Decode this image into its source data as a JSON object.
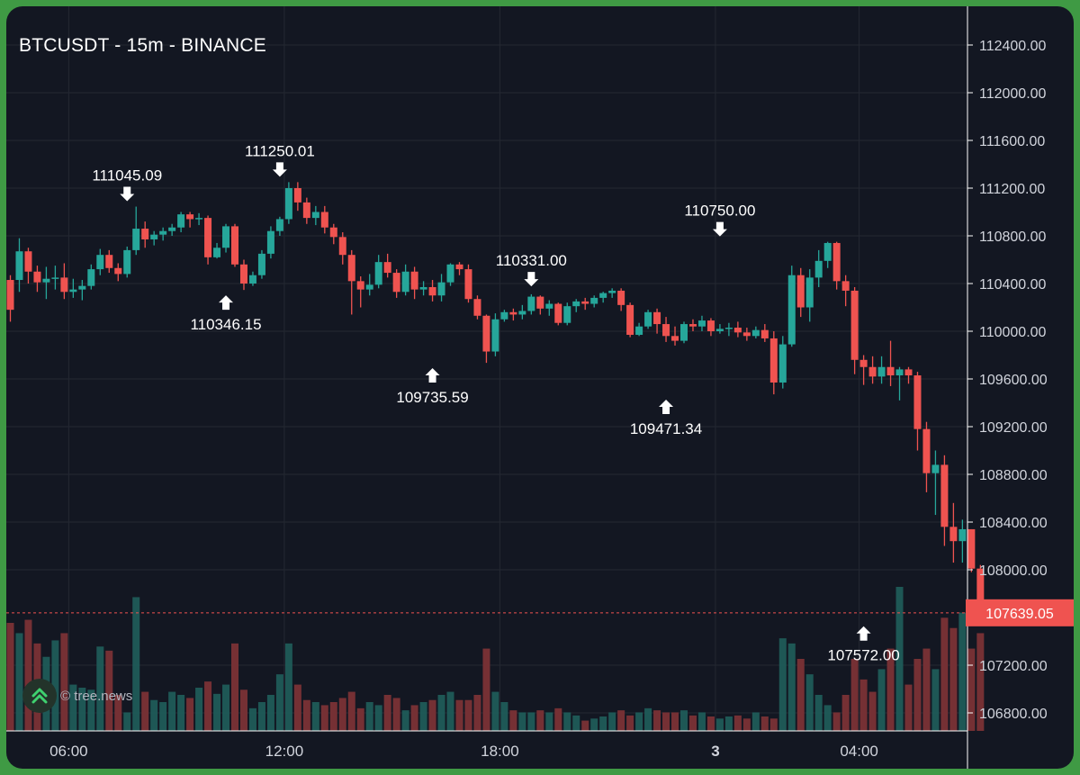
{
  "title": "BTCUSDT - 15m - BINANCE",
  "watermark": {
    "text": "© tree.news",
    "icon": "double-chevron-up-icon"
  },
  "colors": {
    "up": "#26a69a",
    "down": "#ef5350",
    "background": "#131722",
    "frame": "#3f9a44",
    "grid": "#242832",
    "text": "#d1d4dc"
  },
  "chart_data": {
    "type": "candlestick",
    "title": "BTCUSDT - 15m - BINANCE",
    "interval": "15m",
    "y_axis_side": "right",
    "ylim": [
      106640,
      112560
    ],
    "y_ticks": [
      "112400.00",
      "112000.00",
      "111600.00",
      "111200.00",
      "110800.00",
      "110400.00",
      "110000.00",
      "109600.00",
      "109200.00",
      "108800.00",
      "108400.00",
      "108000.00",
      "107200.00",
      "106800.00"
    ],
    "x_ticks": [
      {
        "label": "06:00",
        "index": 6.5
      },
      {
        "label": "12:00",
        "index": 30.5
      },
      {
        "label": "18:00",
        "index": 54.5
      },
      {
        "label": "3",
        "index": 78.5,
        "bold": true
      },
      {
        "label": "04:00",
        "index": 94.5
      }
    ],
    "current_price": "107639.05",
    "current_price_value": 107639.05,
    "annotations": [
      {
        "label": "111045.09",
        "index": 13,
        "value": 111045.09,
        "type": "high"
      },
      {
        "label": "111250.01",
        "index": 30,
        "value": 111250.01,
        "type": "high"
      },
      {
        "label": "110346.15",
        "index": 24,
        "value": 110346.15,
        "type": "low"
      },
      {
        "label": "110331.00",
        "index": 58,
        "value": 110331.0,
        "type": "high"
      },
      {
        "label": "109735.59",
        "index": 47,
        "value": 109735.59,
        "type": "low"
      },
      {
        "label": "110750.00",
        "index": 79,
        "value": 110750.0,
        "type": "high"
      },
      {
        "label": "109471.34",
        "index": 73,
        "value": 109471.34,
        "type": "low"
      },
      {
        "label": "107572.00",
        "index": 95,
        "value": 107572.0,
        "type": "low"
      }
    ],
    "candles": [
      [
        110430,
        110180,
        110080,
        110470
      ],
      [
        110430,
        110670,
        110330,
        110780
      ],
      [
        110670,
        110500,
        110400,
        110700
      ],
      [
        110500,
        110410,
        110330,
        110550
      ],
      [
        110410,
        110440,
        110270,
        110540
      ],
      [
        110440,
        110450,
        110350,
        110550
      ],
      [
        110450,
        110330,
        110270,
        110570
      ],
      [
        110330,
        110350,
        110280,
        110440
      ],
      [
        110350,
        110380,
        110260,
        110430
      ],
      [
        110380,
        110520,
        110350,
        110560
      ],
      [
        110520,
        110640,
        110470,
        110690
      ],
      [
        110640,
        110530,
        110490,
        110680
      ],
      [
        110530,
        110480,
        110420,
        110570
      ],
      [
        110480,
        110680,
        110450,
        110710
      ],
      [
        110680,
        110860,
        110640,
        111045
      ],
      [
        110860,
        110770,
        110700,
        110920
      ],
      [
        110770,
        110810,
        110720,
        110840
      ],
      [
        110810,
        110840,
        110760,
        110870
      ],
      [
        110840,
        110870,
        110800,
        110900
      ],
      [
        110870,
        110980,
        110830,
        111000
      ],
      [
        110980,
        110940,
        110870,
        111000
      ],
      [
        110940,
        110950,
        110890,
        110990
      ],
      [
        110950,
        110620,
        110560,
        110970
      ],
      [
        110620,
        110700,
        110610,
        110740
      ],
      [
        110700,
        110880,
        110660,
        110900
      ],
      [
        110880,
        110560,
        110540,
        110900
      ],
      [
        110560,
        110400,
        110346,
        110600
      ],
      [
        110400,
        110470,
        110380,
        110500
      ],
      [
        110470,
        110650,
        110440,
        110680
      ],
      [
        110650,
        110840,
        110610,
        110880
      ],
      [
        110840,
        110940,
        110800,
        110960
      ],
      [
        110940,
        111200,
        110900,
        111250
      ],
      [
        111200,
        111080,
        111010,
        111250
      ],
      [
        111080,
        110950,
        110900,
        111120
      ],
      [
        110950,
        111000,
        110890,
        111050
      ],
      [
        111000,
        110870,
        110820,
        111050
      ],
      [
        110870,
        110790,
        110730,
        110900
      ],
      [
        110790,
        110640,
        110560,
        110830
      ],
      [
        110640,
        110420,
        110140,
        110680
      ],
      [
        110420,
        110350,
        110200,
        110460
      ],
      [
        110350,
        110390,
        110300,
        110480
      ],
      [
        110390,
        110580,
        110360,
        110640
      ],
      [
        110580,
        110490,
        110450,
        110650
      ],
      [
        110490,
        110330,
        110280,
        110520
      ],
      [
        110330,
        110500,
        110300,
        110560
      ],
      [
        110500,
        110350,
        110270,
        110540
      ],
      [
        110350,
        110370,
        110300,
        110420
      ],
      [
        110370,
        110300,
        110250,
        110430
      ],
      [
        110300,
        110410,
        110250,
        110480
      ],
      [
        110410,
        110560,
        110380,
        110570
      ],
      [
        110560,
        110520,
        110470,
        110580
      ],
      [
        110520,
        110270,
        110240,
        110560
      ],
      [
        110270,
        110130,
        110100,
        110300
      ],
      [
        110130,
        109830,
        109735,
        110140
      ],
      [
        109830,
        110100,
        109790,
        110150
      ],
      [
        110100,
        110160,
        110080,
        110180
      ],
      [
        110160,
        110140,
        110090,
        110190
      ],
      [
        110140,
        110170,
        110100,
        110220
      ],
      [
        110170,
        110290,
        110140,
        110310
      ],
      [
        110290,
        110190,
        110140,
        110300
      ],
      [
        110190,
        110230,
        110130,
        110260
      ],
      [
        110230,
        110070,
        110050,
        110240
      ],
      [
        110070,
        110210,
        110050,
        110240
      ],
      [
        110210,
        110250,
        110160,
        110270
      ],
      [
        110250,
        110230,
        110180,
        110280
      ],
      [
        110230,
        110280,
        110200,
        110300
      ],
      [
        110280,
        110320,
        110240,
        110331
      ],
      [
        110320,
        110340,
        110280,
        110360
      ],
      [
        110340,
        110220,
        110170,
        110360
      ],
      [
        110220,
        109970,
        109950,
        110240
      ],
      [
        109970,
        110040,
        109960,
        110070
      ],
      [
        110040,
        110160,
        110020,
        110180
      ],
      [
        110160,
        110060,
        109980,
        110190
      ],
      [
        110060,
        109960,
        109910,
        110120
      ],
      [
        109960,
        109920,
        109880,
        110040
      ],
      [
        109920,
        110060,
        109900,
        110080
      ],
      [
        110060,
        110040,
        110000,
        110100
      ],
      [
        110040,
        110090,
        110000,
        110130
      ],
      [
        110090,
        110000,
        109960,
        110110
      ],
      [
        110000,
        110020,
        109980,
        110060
      ],
      [
        110020,
        110030,
        109960,
        110070
      ],
      [
        110030,
        109990,
        109950,
        110080
      ],
      [
        109990,
        109960,
        109920,
        110030
      ],
      [
        109960,
        110010,
        109940,
        110040
      ],
      [
        110010,
        109940,
        109910,
        110060
      ],
      [
        109940,
        109570,
        109471,
        110000
      ],
      [
        109570,
        109890,
        109520,
        109960
      ],
      [
        109890,
        110470,
        109870,
        110550
      ],
      [
        110470,
        110200,
        110120,
        110530
      ],
      [
        110200,
        110450,
        110080,
        110520
      ],
      [
        110450,
        110590,
        110370,
        110680
      ],
      [
        110590,
        110740,
        110530,
        110750
      ],
      [
        110740,
        110420,
        110350,
        110750
      ],
      [
        110420,
        110340,
        110210,
        110470
      ],
      [
        110340,
        109760,
        109640,
        110370
      ],
      [
        109760,
        109700,
        109550,
        109800
      ],
      [
        109700,
        109620,
        109560,
        109790
      ],
      [
        109620,
        109700,
        109560,
        109790
      ],
      [
        109700,
        109630,
        109540,
        109920
      ],
      [
        109630,
        109680,
        109420,
        109700
      ],
      [
        109680,
        109630,
        109560,
        109700
      ],
      [
        109630,
        109180,
        109000,
        109660
      ],
      [
        109180,
        108810,
        108650,
        109240
      ],
      [
        108810,
        108880,
        108460,
        109000
      ],
      [
        108880,
        108360,
        108200,
        108960
      ],
      [
        108360,
        108240,
        108060,
        108560
      ],
      [
        108240,
        108340,
        108060,
        108420
      ],
      [
        108340,
        108010,
        107980,
        108340
      ],
      [
        108010,
        107640,
        107572,
        108040
      ]
    ],
    "volumes": [
      105,
      95,
      108,
      85,
      72,
      88,
      95,
      45,
      42,
      40,
      82,
      78,
      35,
      18,
      130,
      38,
      30,
      28,
      38,
      35,
      32,
      42,
      48,
      36,
      45,
      85,
      40,
      22,
      28,
      35,
      55,
      85,
      45,
      30,
      28,
      25,
      28,
      32,
      38,
      22,
      28,
      25,
      35,
      32,
      20,
      25,
      28,
      30,
      35,
      38,
      30,
      30,
      35,
      80,
      38,
      28,
      20,
      18,
      18,
      20,
      18,
      22,
      18,
      15,
      10,
      12,
      14,
      18,
      20,
      15,
      18,
      22,
      20,
      18,
      18,
      20,
      15,
      18,
      14,
      12,
      14,
      15,
      12,
      18,
      14,
      12,
      90,
      85,
      70,
      55,
      35,
      25,
      18,
      35,
      70,
      50,
      38,
      60,
      80,
      140,
      45,
      70,
      80,
      60,
      110,
      100,
      115,
      80,
      95
    ]
  }
}
